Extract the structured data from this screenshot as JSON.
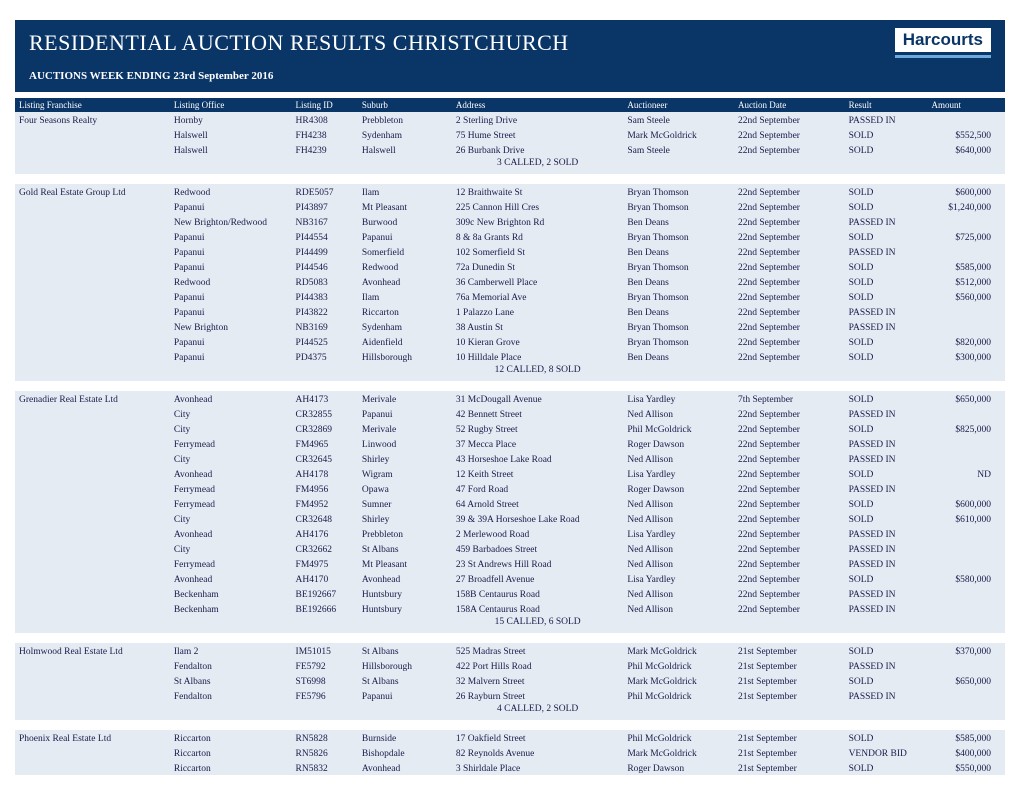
{
  "header": {
    "title": "RESIDENTIAL AUCTION RESULTS CHRISTCHURCH",
    "subtitle": "AUCTIONS WEEK ENDING 23rd September 2016",
    "brand": "Harcourts"
  },
  "columns": [
    "Listing Franchise",
    "Listing Office",
    "Listing ID",
    "Suburb",
    "Address",
    "Auctioneer",
    "Auction Date",
    "Result",
    "Amount"
  ],
  "groups": [
    {
      "franchise": "Four Seasons Realty",
      "rows": [
        {
          "office": "Hornby",
          "id": "HR4308",
          "suburb": "Prebbleton",
          "address": "2 Sterling Drive",
          "auctioneer": "Sam Steele",
          "date": "22nd September",
          "result": "PASSED IN",
          "amount": ""
        },
        {
          "office": "Halswell",
          "id": "FH4238",
          "suburb": "Sydenham",
          "address": "75 Hume Street",
          "auctioneer": "Mark McGoldrick",
          "date": "22nd September",
          "result": "SOLD",
          "amount": "$552,500"
        },
        {
          "office": "Halswell",
          "id": "FH4239",
          "suburb": "Halswell",
          "address": "26 Burbank Drive",
          "auctioneer": "Sam Steele",
          "date": "22nd September",
          "result": "SOLD",
          "amount": "$640,000"
        }
      ],
      "summary": "3 CALLED, 2 SOLD"
    },
    {
      "franchise": "Gold Real Estate Group Ltd",
      "rows": [
        {
          "office": "Redwood",
          "id": "RDE5057",
          "suburb": "Ilam",
          "address": "12 Braithwaite St",
          "auctioneer": "Bryan Thomson",
          "date": "22nd September",
          "result": "SOLD",
          "amount": "$600,000"
        },
        {
          "office": "Papanui",
          "id": "PI43897",
          "suburb": "Mt Pleasant",
          "address": "225 Cannon Hill Cres",
          "auctioneer": "Bryan Thomson",
          "date": "22nd September",
          "result": "SOLD",
          "amount": "$1,240,000"
        },
        {
          "office": "New Brighton/Redwood",
          "id": "NB3167",
          "suburb": "Burwood",
          "address": "309c New Brighton Rd",
          "auctioneer": "Ben Deans",
          "date": "22nd September",
          "result": "PASSED IN",
          "amount": ""
        },
        {
          "office": "Papanui",
          "id": "PI44554",
          "suburb": "Papanui",
          "address": "8 & 8a Grants Rd",
          "auctioneer": "Bryan Thomson",
          "date": "22nd September",
          "result": "SOLD",
          "amount": "$725,000"
        },
        {
          "office": "Papanui",
          "id": "PI44499",
          "suburb": "Somerfield",
          "address": "102 Somerfield St",
          "auctioneer": "Ben Deans",
          "date": "22nd September",
          "result": "PASSED IN",
          "amount": ""
        },
        {
          "office": "Papanui",
          "id": "PI44546",
          "suburb": "Redwood",
          "address": "72a Dunedin St",
          "auctioneer": "Bryan Thomson",
          "date": "22nd September",
          "result": "SOLD",
          "amount": "$585,000"
        },
        {
          "office": "Redwood",
          "id": "RD5083",
          "suburb": "Avonhead",
          "address": "36 Camberwell Place",
          "auctioneer": "Ben Deans",
          "date": "22nd September",
          "result": "SOLD",
          "amount": "$512,000"
        },
        {
          "office": "Papanui",
          "id": "PI44383",
          "suburb": "Ilam",
          "address": "76a Memorial Ave",
          "auctioneer": "Bryan Thomson",
          "date": "22nd September",
          "result": "SOLD",
          "amount": "$560,000"
        },
        {
          "office": "Papanui",
          "id": "PI43822",
          "suburb": "Riccarton",
          "address": "1 Palazzo Lane",
          "auctioneer": "Ben Deans",
          "date": "22nd September",
          "result": "PASSED IN",
          "amount": ""
        },
        {
          "office": "New Brighton",
          "id": "NB3169",
          "suburb": "Sydenham",
          "address": "38 Austin St",
          "auctioneer": "Bryan Thomson",
          "date": "22nd September",
          "result": "PASSED IN",
          "amount": ""
        },
        {
          "office": "Papanui",
          "id": "PI44525",
          "suburb": "Aidenfield",
          "address": "10 Kieran Grove",
          "auctioneer": "Bryan Thomson",
          "date": "22nd September",
          "result": "SOLD",
          "amount": "$820,000"
        },
        {
          "office": "Papanui",
          "id": "PD4375",
          "suburb": "Hillsborough",
          "address": "10 Hilldale Place",
          "auctioneer": "Ben Deans",
          "date": "22nd September",
          "result": "SOLD",
          "amount": "$300,000"
        }
      ],
      "summary": "12 CALLED, 8 SOLD"
    },
    {
      "franchise": "Grenadier Real Estate Ltd",
      "rows": [
        {
          "office": "Avonhead",
          "id": "AH4173",
          "suburb": "Merivale",
          "address": "31 McDougall Avenue",
          "auctioneer": "Lisa Yardley",
          "date": "7th September",
          "result": "SOLD",
          "amount": "$650,000"
        },
        {
          "office": "City",
          "id": "CR32855",
          "suburb": "Papanui",
          "address": "42 Bennett Street",
          "auctioneer": "Ned Allison",
          "date": "22nd September",
          "result": "PASSED IN",
          "amount": ""
        },
        {
          "office": "City",
          "id": "CR32869",
          "suburb": "Merivale",
          "address": "52 Rugby Street",
          "auctioneer": "Phil McGoldrick",
          "date": "22nd September",
          "result": "SOLD",
          "amount": "$825,000"
        },
        {
          "office": "Ferrymead",
          "id": "FM4965",
          "suburb": "Linwood",
          "address": "37 Mecca Place",
          "auctioneer": "Roger Dawson",
          "date": "22nd September",
          "result": "PASSED IN",
          "amount": ""
        },
        {
          "office": "City",
          "id": "CR32645",
          "suburb": "Shirley",
          "address": "43 Horseshoe Lake Road",
          "auctioneer": "Ned Allison",
          "date": "22nd September",
          "result": "PASSED IN",
          "amount": ""
        },
        {
          "office": "Avonhead",
          "id": "AH4178",
          "suburb": "Wigram",
          "address": "12 Keith Street",
          "auctioneer": "Lisa Yardley",
          "date": "22nd September",
          "result": "SOLD",
          "amount": "ND"
        },
        {
          "office": "Ferrymead",
          "id": "FM4956",
          "suburb": "Opawa",
          "address": "47 Ford Road",
          "auctioneer": "Roger Dawson",
          "date": "22nd September",
          "result": "PASSED IN",
          "amount": ""
        },
        {
          "office": "Ferrymead",
          "id": "FM4952",
          "suburb": "Sumner",
          "address": "64 Arnold Street",
          "auctioneer": "Ned Allison",
          "date": "22nd September",
          "result": "SOLD",
          "amount": "$600,000"
        },
        {
          "office": "City",
          "id": "CR32648",
          "suburb": "Shirley",
          "address": "39 & 39A Horseshoe Lake Road",
          "auctioneer": "Ned Allison",
          "date": "22nd September",
          "result": "SOLD",
          "amount": "$610,000"
        },
        {
          "office": "Avonhead",
          "id": "AH4176",
          "suburb": "Prebbleton",
          "address": "2 Merlewood Road",
          "auctioneer": "Lisa Yardley",
          "date": "22nd September",
          "result": "PASSED IN",
          "amount": ""
        },
        {
          "office": "City",
          "id": "CR32662",
          "suburb": "St Albans",
          "address": "459 Barbadoes Street",
          "auctioneer": "Ned Allison",
          "date": "22nd September",
          "result": "PASSED IN",
          "amount": ""
        },
        {
          "office": "Ferrymead",
          "id": "FM4975",
          "suburb": "Mt Pleasant",
          "address": "23 St Andrews Hill Road",
          "auctioneer": "Ned Allison",
          "date": "22nd September",
          "result": "PASSED IN",
          "amount": ""
        },
        {
          "office": "Avonhead",
          "id": "AH4170",
          "suburb": "Avonhead",
          "address": "27 Broadfell Avenue",
          "auctioneer": "Lisa Yardley",
          "date": "22nd September",
          "result": "SOLD",
          "amount": "$580,000"
        },
        {
          "office": "Beckenham",
          "id": "BE192667",
          "suburb": "Huntsbury",
          "address": "158B Centaurus Road",
          "auctioneer": "Ned Allison",
          "date": "22nd September",
          "result": "PASSED IN",
          "amount": ""
        },
        {
          "office": "Beckenham",
          "id": "BE192666",
          "suburb": "Huntsbury",
          "address": "158A Centaurus Road",
          "auctioneer": "Ned Allison",
          "date": "22nd September",
          "result": "PASSED IN",
          "amount": ""
        }
      ],
      "summary": "15 CALLED, 6 SOLD"
    },
    {
      "franchise": "Holmwood Real Estate Ltd",
      "rows": [
        {
          "office": "Ilam 2",
          "id": "IM51015",
          "suburb": "St Albans",
          "address": "525 Madras Street",
          "auctioneer": "Mark McGoldrick",
          "date": "21st September",
          "result": "SOLD",
          "amount": "$370,000"
        },
        {
          "office": "Fendalton",
          "id": "FE5792",
          "suburb": "Hillsborough",
          "address": "422 Port Hills Road",
          "auctioneer": "Phil McGoldrick",
          "date": "21st September",
          "result": "PASSED IN",
          "amount": ""
        },
        {
          "office": "St Albans",
          "id": "ST6998",
          "suburb": "St Albans",
          "address": "32 Malvern Street",
          "auctioneer": "Mark McGoldrick",
          "date": "21st September",
          "result": "SOLD",
          "amount": "$650,000"
        },
        {
          "office": "Fendalton",
          "id": "FE5796",
          "suburb": "Papanui",
          "address": "26 Rayburn Street",
          "auctioneer": "Phil McGoldrick",
          "date": "21st September",
          "result": "PASSED IN",
          "amount": ""
        }
      ],
      "summary": "4 CALLED, 2 SOLD"
    },
    {
      "franchise": "Phoenix Real Estate Ltd",
      "rows": [
        {
          "office": "Riccarton",
          "id": "RN5828",
          "suburb": "Burnside",
          "address": "17 Oakfield Street",
          "auctioneer": "Phil McGoldrick",
          "date": "21st September",
          "result": "SOLD",
          "amount": "$585,000"
        },
        {
          "office": "Riccarton",
          "id": "RN5826",
          "suburb": "Bishopdale",
          "address": "82 Reynolds Avenue",
          "auctioneer": "Mark McGoldrick",
          "date": "21st September",
          "result": "VENDOR BID",
          "amount": "$400,000"
        },
        {
          "office": "Riccarton",
          "id": "RN5832",
          "suburb": "Avonhead",
          "address": "3 Shirldale Place",
          "auctioneer": "Roger Dawson",
          "date": "21st September",
          "result": "SOLD",
          "amount": "$550,000"
        }
      ],
      "summary": ""
    }
  ]
}
